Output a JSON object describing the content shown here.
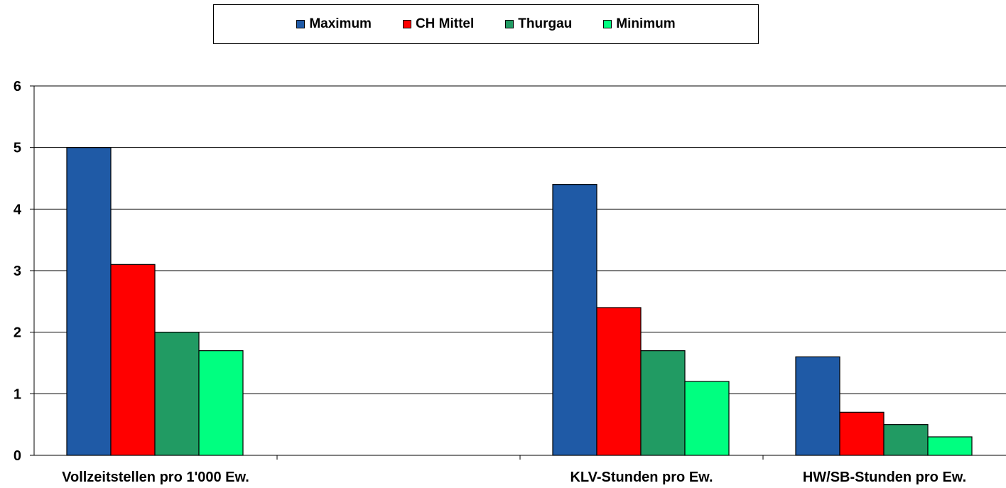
{
  "chart_data": {
    "type": "bar",
    "title": "",
    "xlabel": "",
    "ylabel": "",
    "ylim": [
      0,
      6
    ],
    "yticks": [
      "0",
      "1",
      "2",
      "3",
      "4",
      "5",
      "6"
    ],
    "grid": true,
    "legend_position": "top",
    "slots": 4,
    "categories": [
      {
        "label": "Vollzeitstellen pro 1'000 Ew.",
        "slot": 0
      },
      {
        "label": "KLV-Stunden pro Ew.",
        "slot": 2
      },
      {
        "label": "HW/SB-Stunden pro Ew.",
        "slot": 3
      }
    ],
    "series": [
      {
        "name": "Maximum",
        "color": "#1f5aa6",
        "values": [
          5.0,
          4.4,
          1.6
        ]
      },
      {
        "name": "CH Mittel",
        "color": "#ff0000",
        "values": [
          3.1,
          2.4,
          0.7
        ]
      },
      {
        "name": "Thurgau",
        "color": "#219b63",
        "values": [
          2.0,
          1.7,
          0.5
        ]
      },
      {
        "name": "Minimum",
        "color": "#00ff80",
        "values": [
          1.7,
          1.2,
          0.3
        ]
      }
    ]
  }
}
